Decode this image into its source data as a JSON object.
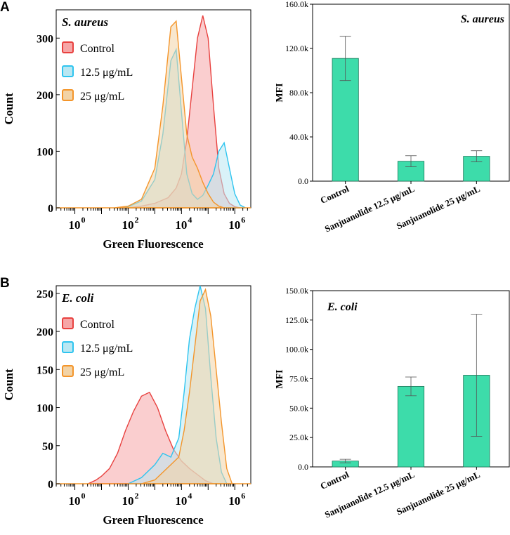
{
  "colors": {
    "control": "#e8413f",
    "control_fill": "#f6a6a7",
    "c12": "#2ec4ef",
    "c12_fill": "#b9e7f2",
    "c25": "#f4952a",
    "c25_fill": "#f2d3a6",
    "bar": "#3ddcaa",
    "bar_stroke": "#1f7a5c"
  },
  "panels": {
    "A": {
      "letter": "A"
    },
    "B": {
      "letter": "B"
    }
  },
  "chart_data": [
    {
      "id": "A-hist",
      "type": "area",
      "title": "S. aureus",
      "xlabel": "Green Fluorescence",
      "ylabel": "Count",
      "yticks": [
        "0",
        "100",
        "200",
        "300"
      ],
      "ylim": [
        0,
        350
      ],
      "xlim_log10": [
        -0.7,
        6.6
      ],
      "xtick_exponents": [
        0,
        2,
        4,
        6
      ],
      "legend": [
        {
          "label": "Control",
          "key": "control"
        },
        {
          "label": "12.5 μg/mL",
          "key": "c12"
        },
        {
          "label": "25 μg/mL",
          "key": "c25"
        }
      ],
      "series": [
        {
          "name": "Control",
          "key": "control",
          "x_log10": [
            2.0,
            2.5,
            3.0,
            3.5,
            3.8,
            4.0,
            4.2,
            4.4,
            4.6,
            4.8,
            5.0,
            5.2,
            5.4,
            5.6,
            5.8,
            6.0,
            6.2
          ],
          "counts": [
            0,
            3,
            8,
            18,
            35,
            60,
            120,
            210,
            300,
            340,
            300,
            180,
            70,
            25,
            8,
            2,
            0
          ]
        },
        {
          "name": "12.5 μg/mL",
          "key": "c12",
          "x_log10": [
            1.5,
            2.0,
            2.5,
            3.0,
            3.3,
            3.6,
            3.8,
            4.0,
            4.2,
            4.4,
            4.6,
            4.8,
            5.0,
            5.2,
            5.4,
            5.6,
            5.8,
            6.0,
            6.2,
            6.4
          ],
          "counts": [
            0,
            2,
            12,
            50,
            130,
            260,
            280,
            170,
            60,
            25,
            15,
            22,
            40,
            60,
            100,
            115,
            70,
            25,
            5,
            0
          ]
        },
        {
          "name": "25 μg/mL",
          "key": "c25",
          "x_log10": [
            1.5,
            2.0,
            2.5,
            3.0,
            3.3,
            3.6,
            3.8,
            4.0,
            4.2,
            4.4,
            4.6,
            4.8,
            5.0,
            5.2,
            5.4,
            5.6
          ],
          "counts": [
            0,
            3,
            15,
            70,
            180,
            320,
            330,
            230,
            130,
            90,
            70,
            45,
            25,
            10,
            3,
            0
          ]
        }
      ]
    },
    {
      "id": "A-bar",
      "type": "bar",
      "title": "S. aureus",
      "xlabel": "",
      "ylabel": "MFI",
      "categories": [
        "Control",
        "Sanjuanolide 12.5 μg/mL",
        "Sanjuanolide 25 μg/mL"
      ],
      "values": [
        111000,
        18000,
        22500
      ],
      "errors": [
        20000,
        5000,
        5000
      ],
      "ylim": [
        0,
        160000
      ],
      "yticks": [
        "0.0",
        "40.0k",
        "80.0k",
        "120.0k",
        "160.0k"
      ]
    },
    {
      "id": "B-hist",
      "type": "area",
      "title": "E. coli",
      "xlabel": "Green Fluorescence",
      "ylabel": "Count",
      "yticks": [
        "0",
        "50",
        "100",
        "150",
        "200",
        "250"
      ],
      "ylim": [
        0,
        260
      ],
      "xlim_log10": [
        -0.7,
        6.6
      ],
      "xtick_exponents": [
        0,
        2,
        4,
        6
      ],
      "legend": [
        {
          "label": "Control",
          "key": "control"
        },
        {
          "label": "12.5 μg/mL",
          "key": "c12"
        },
        {
          "label": "25 μg/mL",
          "key": "c25"
        }
      ],
      "series": [
        {
          "name": "Control",
          "key": "control",
          "x_log10": [
            0.5,
            0.8,
            1.0,
            1.3,
            1.6,
            1.9,
            2.2,
            2.5,
            2.8,
            3.1,
            3.4,
            3.7,
            4.0,
            4.3,
            4.6,
            4.9,
            5.2
          ],
          "counts": [
            0,
            5,
            10,
            20,
            40,
            70,
            95,
            115,
            120,
            100,
            70,
            45,
            30,
            20,
            12,
            4,
            0
          ]
        },
        {
          "name": "12.5 μg/mL",
          "key": "c12",
          "x_log10": [
            2.0,
            2.5,
            3.0,
            3.3,
            3.6,
            3.9,
            4.1,
            4.3,
            4.5,
            4.7,
            4.9,
            5.1,
            5.3,
            5.5,
            5.7
          ],
          "counts": [
            0,
            8,
            25,
            40,
            35,
            60,
            120,
            190,
            230,
            260,
            230,
            140,
            60,
            15,
            0
          ]
        },
        {
          "name": "25 μg/mL",
          "key": "c25",
          "x_log10": [
            2.5,
            3.0,
            3.3,
            3.6,
            3.9,
            4.1,
            4.3,
            4.5,
            4.7,
            4.9,
            5.1,
            5.3,
            5.5,
            5.7,
            5.9
          ],
          "counts": [
            0,
            5,
            15,
            25,
            35,
            70,
            120,
            180,
            240,
            255,
            220,
            150,
            80,
            20,
            0
          ]
        }
      ]
    },
    {
      "id": "B-bar",
      "type": "bar",
      "title": "E. coli",
      "xlabel": "",
      "ylabel": "MFI",
      "categories": [
        "Control",
        "Sanjuanolide 12.5 μg/mL",
        "Sanjuanolide 25 μg/mL"
      ],
      "values": [
        5000,
        68500,
        78000
      ],
      "errors": [
        1500,
        8000,
        52000
      ],
      "ylim": [
        0,
        150000
      ],
      "yticks": [
        "0.0",
        "25.0k",
        "50.0k",
        "75.0k",
        "100.0k",
        "125.0k",
        "150.0k"
      ]
    }
  ]
}
